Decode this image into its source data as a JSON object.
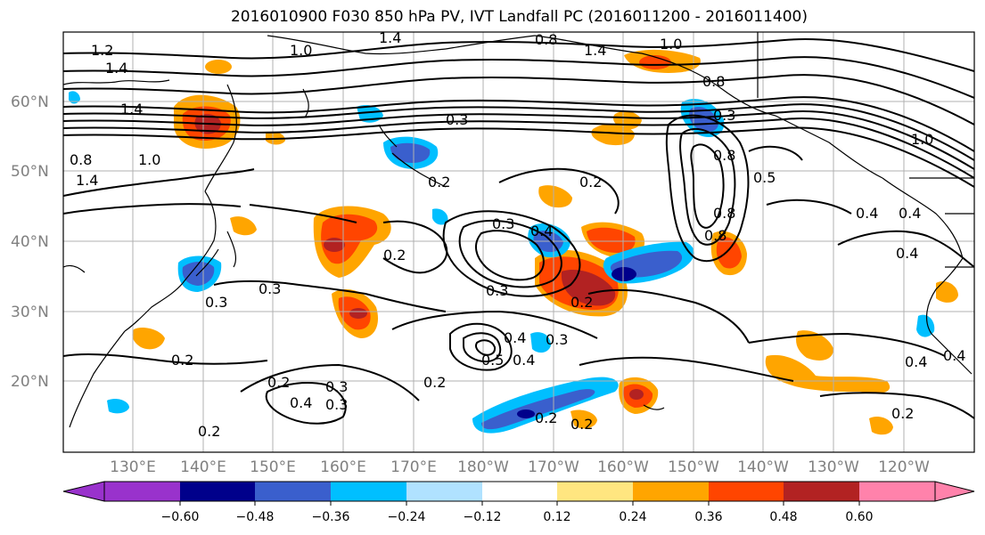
{
  "title": "2016010900 F030 850 hPa PV, IVT Landfall PC (2016011200 - 2016011400)",
  "lat_labels": [
    "60°N",
    "50°N",
    "40°N",
    "30°N",
    "20°N"
  ],
  "lon_labels": [
    "130°E",
    "140°E",
    "150°E",
    "160°E",
    "170°E",
    "180°W",
    "170°W",
    "160°W",
    "150°W",
    "140°W",
    "130°W",
    "120°W"
  ],
  "colorbar": {
    "ticks": [
      "−0.60",
      "−0.48",
      "−0.36",
      "−0.24",
      "−0.12",
      "0.12",
      "0.24",
      "0.36",
      "0.48",
      "0.60"
    ],
    "colors": [
      "#9932cc",
      "#00008b",
      "#3a5fcd",
      "#00bfff",
      "#b0e2ff",
      "#ffffff",
      "#ffe680",
      "#ffa500",
      "#ff4500",
      "#b22222",
      "#ff82ab"
    ]
  },
  "contour_labels": [
    "1.2",
    "1.4",
    "1.4",
    "1.4",
    "0.8",
    "1.0",
    "1.4",
    "1.0",
    "0.8",
    "0.3",
    "1.0",
    "0.8",
    "1.4",
    "1.0",
    "0.8",
    "0.3",
    "0.2",
    "0.2",
    "0.2",
    "0.3",
    "0.4",
    "0.3",
    "0.2",
    "0.3",
    "0.2",
    "0.3",
    "0.3",
    "0.4",
    "0.5",
    "0.4",
    "0.3",
    "0.2",
    "0.4",
    "0.3",
    "0.2",
    "0.2",
    "0.2",
    "0.2",
    "0.4",
    "0.2",
    "0.4",
    "0.4",
    "0.8",
    "0.8",
    "0.5",
    "0.4",
    "0.4"
  ]
}
